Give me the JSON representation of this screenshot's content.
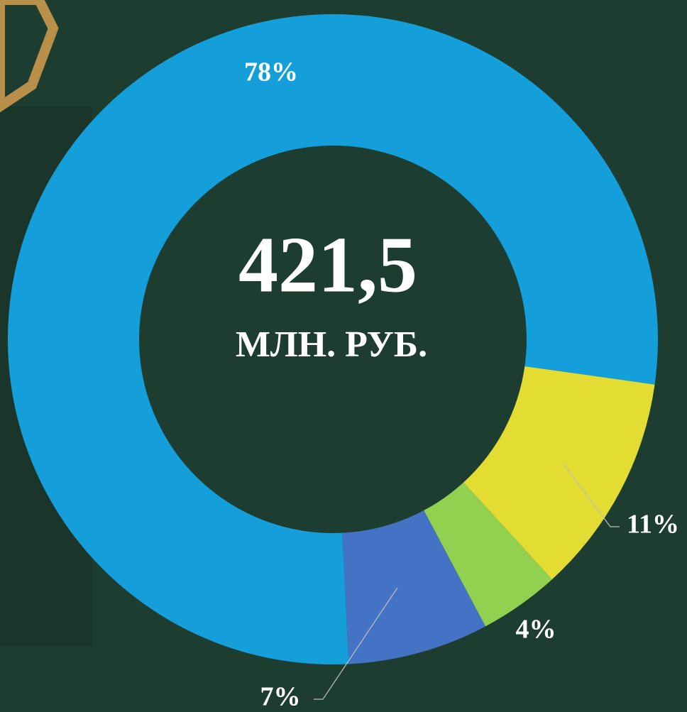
{
  "chart_data": {
    "type": "pie",
    "donut": true,
    "center_title": "421,5",
    "center_subtitle": "МЛН. РУБ.",
    "values": [
      78,
      11,
      4,
      7
    ],
    "value_labels": [
      "78%",
      "11%",
      "4%",
      "7%"
    ],
    "colors": [
      "#159fda",
      "#e3dc32",
      "#92d050",
      "#4472c4"
    ]
  }
}
